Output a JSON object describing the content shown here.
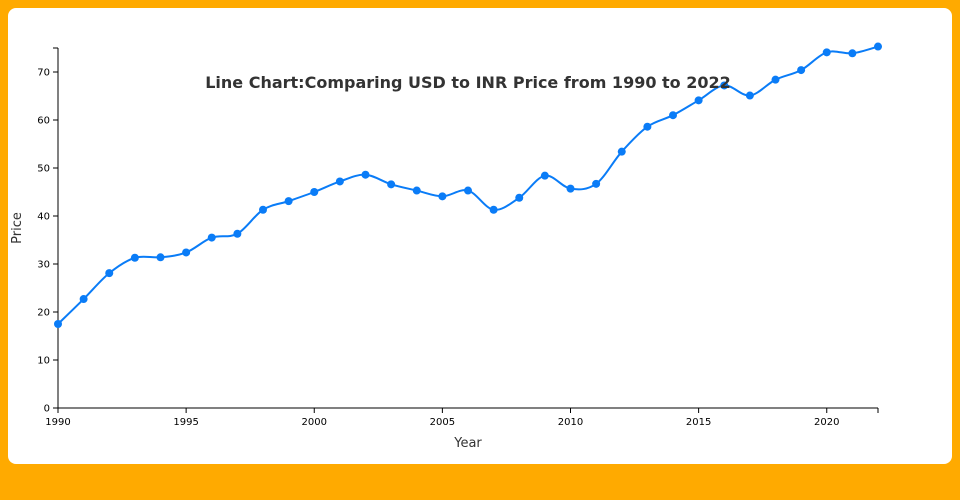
{
  "chart_data": {
    "type": "line",
    "title": "Line Chart:Comparing USD to INR Price from 1990 to 2022",
    "xlabel": "Year",
    "ylabel": "Price",
    "xlim": [
      1990,
      2022
    ],
    "ylim": [
      0,
      75
    ],
    "x_ticks": [
      1990,
      1995,
      2000,
      2005,
      2010,
      2015,
      2020
    ],
    "y_ticks": [
      0,
      10,
      20,
      30,
      40,
      50,
      60,
      70
    ],
    "series": [
      {
        "name": "USD to INR",
        "color": "#0A7CF7",
        "x": [
          1990,
          1991,
          1992,
          1993,
          1994,
          1995,
          1996,
          1997,
          1998,
          1999,
          2000,
          2001,
          2002,
          2003,
          2004,
          2005,
          2006,
          2007,
          2008,
          2009,
          2010,
          2011,
          2012,
          2013,
          2014,
          2015,
          2016,
          2017,
          2018,
          2019,
          2020,
          2021,
          2022
        ],
        "values": [
          17.5,
          22.7,
          28.1,
          31.3,
          31.4,
          32.4,
          35.5,
          36.3,
          41.3,
          43.1,
          45.0,
          47.2,
          48.6,
          46.6,
          45.3,
          44.1,
          45.3,
          41.3,
          43.8,
          48.4,
          45.7,
          46.7,
          53.4,
          58.6,
          61.0,
          64.1,
          67.2,
          65.1,
          68.4,
          70.4,
          74.1,
          73.9,
          75.3
        ]
      }
    ]
  }
}
